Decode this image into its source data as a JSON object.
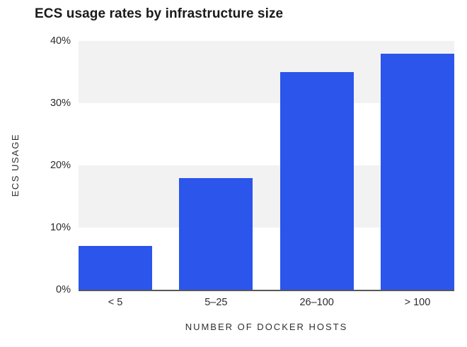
{
  "chart_data": {
    "type": "bar",
    "title": "ECS usage rates by infrastructure size",
    "xlabel": "NUMBER OF DOCKER HOSTS",
    "ylabel": "ECS USAGE",
    "categories": [
      "< 5",
      "5–25",
      "26–100",
      "> 100"
    ],
    "values": [
      7,
      18,
      35,
      38
    ],
    "ylim": [
      0,
      40
    ],
    "ytick_labels": [
      "40%",
      "30%",
      "20%",
      "10%",
      "0%"
    ],
    "bar_color": "#2B55EB",
    "band_color": "#F2F2F2",
    "axis_line_color": "#58585A",
    "grid": "alternating horizontal background bands, no gridlines",
    "legend": "none"
  }
}
